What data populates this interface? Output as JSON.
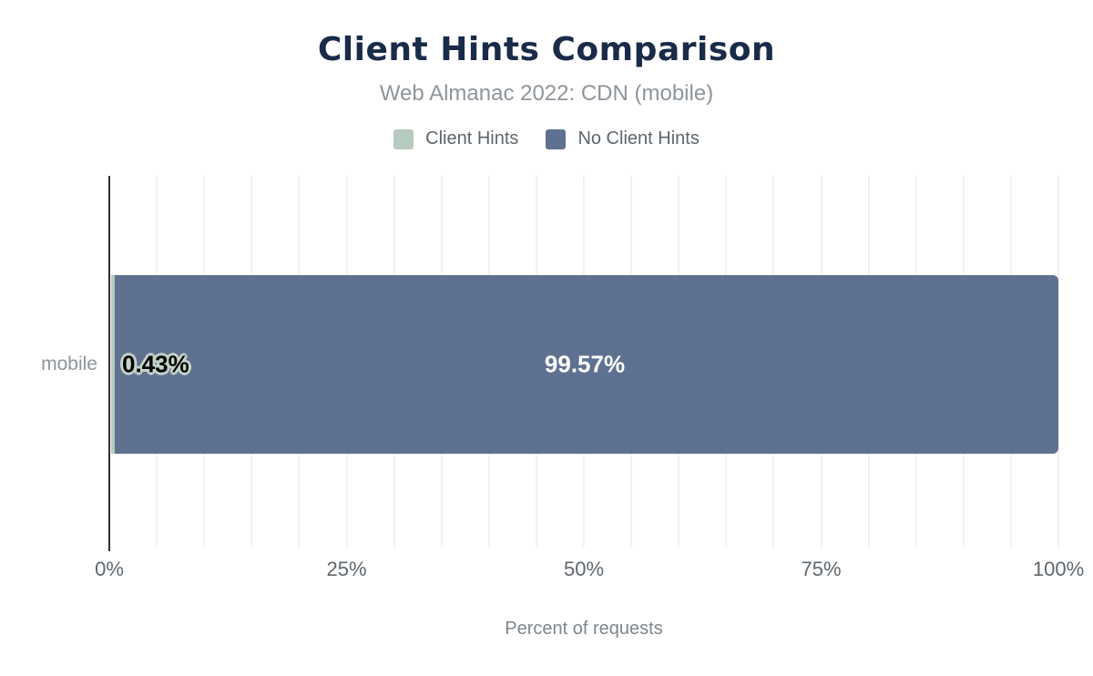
{
  "title": "Client Hints Comparison",
  "subtitle": "Web Almanac 2022: CDN (mobile)",
  "legend": {
    "items": [
      {
        "label": "Client Hints",
        "color": "#b7cabf"
      },
      {
        "label": "No Client Hints",
        "color": "#5e7190"
      }
    ]
  },
  "chart_data": {
    "type": "bar",
    "orientation": "horizontal",
    "stacked": true,
    "title": "Client Hints Comparison",
    "subtitle": "Web Almanac 2022: CDN (mobile)",
    "categories": [
      "mobile"
    ],
    "series": [
      {
        "name": "Client Hints",
        "color": "#b7cabf",
        "values": [
          0.43
        ]
      },
      {
        "name": "No Client Hints",
        "color": "#5e7190",
        "values": [
          99.57
        ]
      }
    ],
    "bar_labels": [
      "0.43%",
      "99.57%"
    ],
    "xlabel": "Percent of requests",
    "ylabel": "",
    "xlim": [
      0,
      100
    ],
    "xticks": [
      "0%",
      "25%",
      "50%",
      "75%",
      "100%"
    ],
    "xtick_positions": [
      0,
      25,
      50,
      75,
      100
    ],
    "gridline_step_percent": 5,
    "grid": true,
    "legend_position": "top",
    "colors": {
      "title": "#1a2b49",
      "subtitle": "#8e959c",
      "gridline": "#f1f1f1",
      "axis_line": "#2f2f2f",
      "tick_label": "#5f666d"
    }
  }
}
